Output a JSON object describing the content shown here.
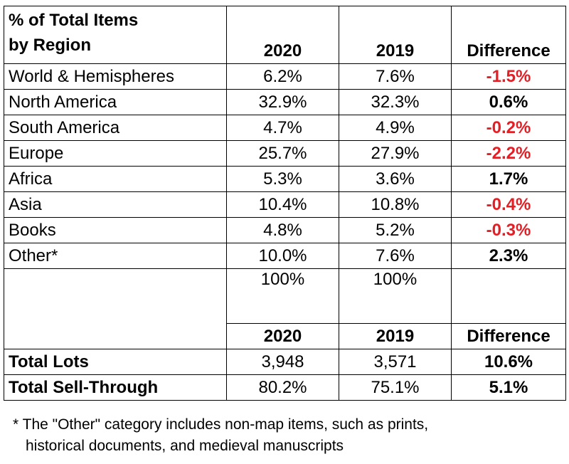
{
  "table": {
    "header": {
      "title_line1": "% of Total Items",
      "title_line2": "by Region",
      "col_2020": "2020",
      "col_2019": "2019",
      "col_diff": "Difference"
    },
    "rows": [
      {
        "label": "World & Hemispheres",
        "v2020": "6.2%",
        "v2019": "7.6%",
        "diff": "-1.5%"
      },
      {
        "label": "North America",
        "v2020": "32.9%",
        "v2019": "32.3%",
        "diff": "0.6%"
      },
      {
        "label": "South America",
        "v2020": "4.7%",
        "v2019": "4.9%",
        "diff": "-0.2%"
      },
      {
        "label": "Europe",
        "v2020": "25.7%",
        "v2019": "27.9%",
        "diff": "-2.2%"
      },
      {
        "label": "Africa",
        "v2020": "5.3%",
        "v2019": "3.6%",
        "diff": "1.7%"
      },
      {
        "label": "Asia",
        "v2020": "10.4%",
        "v2019": "10.8%",
        "diff": "-0.4%"
      },
      {
        "label": "Books",
        "v2020": "4.8%",
        "v2019": "5.2%",
        "diff": "-0.3%"
      },
      {
        "label": "Other*",
        "v2020": "10.0%",
        "v2019": "7.6%",
        "diff": "2.3%"
      }
    ],
    "totals": {
      "t2020": "100%",
      "t2019": "100%"
    },
    "summary_header": {
      "col_2020": "2020",
      "col_2019": "2019",
      "col_diff": "Difference"
    },
    "summary_rows": [
      {
        "label": "Total Lots",
        "v2020": "3,948",
        "v2019": "3,571",
        "diff": "10.6%"
      },
      {
        "label": "Total Sell-Through",
        "v2020": "80.2%",
        "v2019": "75.1%",
        "diff": "5.1%"
      }
    ]
  },
  "colors": {
    "negative": "#e31e24",
    "positive": "#000000"
  },
  "footnote": {
    "line1": "* The \"Other\" category includes non-map items, such as prints,",
    "line2": "historical documents, and medieval manuscripts"
  }
}
